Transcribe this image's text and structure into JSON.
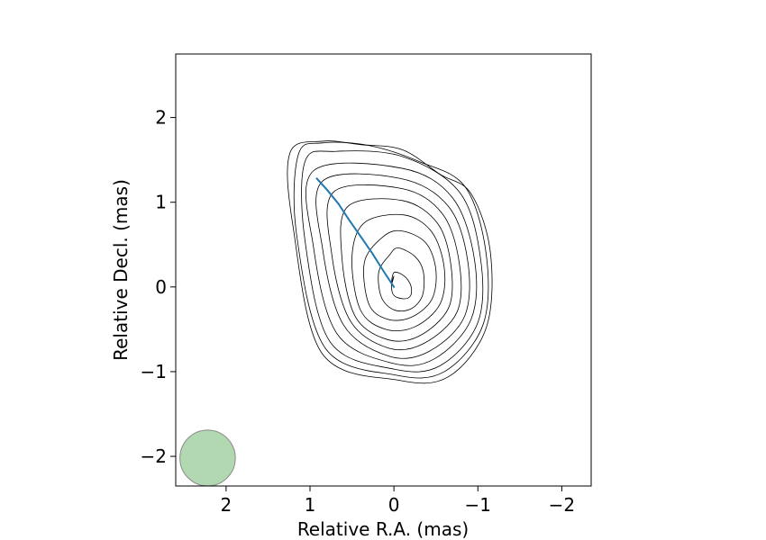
{
  "chart_data": {
    "type": "contour",
    "xlabel": "Relative R.A. (mas)",
    "ylabel": "Relative Decl. (mas)",
    "xlim": [
      2.6,
      -2.35
    ],
    "ylim": [
      -2.35,
      2.75
    ],
    "x_ticks": [
      2,
      1,
      0,
      -1,
      -2
    ],
    "x_tick_labels": [
      "2",
      "1",
      "0",
      "−1",
      "−2"
    ],
    "y_ticks": [
      -2,
      -1,
      0,
      1,
      2
    ],
    "y_tick_labels": [
      "−2",
      "−1",
      "0",
      "1",
      "2"
    ],
    "contours": {
      "color": "#000000",
      "levels": [
        {
          "ra": [
            0.0,
            0.03,
            0.0,
            -0.12,
            -0.2,
            -0.2,
            -0.12,
            0.0,
            0.03,
            0.0
          ],
          "dec": [
            0.13,
            0.02,
            -0.1,
            -0.14,
            -0.1,
            0.02,
            0.13,
            0.17,
            0.02,
            0.13
          ]
        },
        {
          "ra": [
            0.05,
            0.18,
            0.15,
            0.0,
            -0.2,
            -0.34,
            -0.35,
            -0.25,
            -0.05,
            0.05
          ],
          "dec": [
            0.38,
            0.18,
            -0.12,
            -0.27,
            -0.26,
            -0.1,
            0.18,
            0.36,
            0.46,
            0.38
          ]
        },
        {
          "ra": [
            0.12,
            0.35,
            0.3,
            0.08,
            -0.2,
            -0.45,
            -0.5,
            -0.38,
            -0.1,
            0.12
          ],
          "dec": [
            0.6,
            0.3,
            -0.2,
            -0.38,
            -0.36,
            -0.15,
            0.2,
            0.52,
            0.66,
            0.6
          ]
        },
        {
          "ra": [
            0.35,
            0.5,
            0.4,
            0.1,
            -0.25,
            -0.55,
            -0.6,
            -0.45,
            -0.12,
            0.35
          ],
          "dec": [
            0.76,
            0.35,
            -0.27,
            -0.5,
            -0.47,
            -0.2,
            0.22,
            0.65,
            0.85,
            0.76
          ]
        },
        {
          "ra": [
            0.55,
            0.62,
            0.46,
            0.08,
            -0.3,
            -0.65,
            -0.68,
            -0.52,
            -0.1,
            0.55
          ],
          "dec": [
            0.95,
            0.35,
            -0.35,
            -0.62,
            -0.58,
            -0.25,
            0.25,
            0.75,
            1.02,
            0.95
          ]
        },
        {
          "ra": [
            0.72,
            0.74,
            0.52,
            0.07,
            -0.35,
            -0.75,
            -0.78,
            -0.58,
            -0.1,
            0.72
          ],
          "dec": [
            1.12,
            0.38,
            -0.4,
            -0.72,
            -0.67,
            -0.3,
            0.27,
            0.86,
            1.16,
            1.12
          ]
        },
        {
          "ra": [
            0.85,
            0.85,
            0.6,
            0.05,
            -0.42,
            -0.84,
            -0.88,
            -0.65,
            -0.08,
            0.85
          ],
          "dec": [
            1.25,
            0.45,
            -0.45,
            -0.82,
            -0.76,
            -0.35,
            0.3,
            0.95,
            1.28,
            1.25
          ]
        },
        {
          "ra": [
            0.96,
            0.96,
            0.68,
            0.02,
            -0.48,
            -0.92,
            -0.96,
            -0.7,
            -0.1,
            0.96
          ],
          "dec": [
            1.37,
            0.48,
            -0.55,
            -0.9,
            -0.85,
            -0.38,
            0.32,
            1.05,
            1.4,
            1.37
          ]
        },
        {
          "ra": [
            1.06,
            1.06,
            0.76,
            0.0,
            -0.55,
            -1.0,
            -1.03,
            -0.78,
            -0.1,
            0.7,
            1.06
          ],
          "dec": [
            1.48,
            0.55,
            -0.65,
            -0.97,
            -0.93,
            -0.42,
            0.35,
            1.12,
            1.54,
            1.6,
            1.48
          ]
        },
        {
          "ra": [
            1.14,
            1.16,
            0.82,
            -0.02,
            -0.6,
            -1.06,
            -1.1,
            -0.85,
            -0.3,
            0.3,
            0.85,
            1.14
          ],
          "dec": [
            1.56,
            0.62,
            -0.72,
            -1.04,
            -1.0,
            -0.45,
            0.38,
            1.18,
            1.48,
            1.67,
            1.7,
            1.56
          ]
        },
        {
          "ra": [
            1.24,
            1.2,
            0.86,
            -0.05,
            -0.65,
            -1.1,
            -1.15,
            -0.92,
            -0.55,
            -0.1,
            0.4,
            0.85,
            1.24
          ],
          "dec": [
            1.58,
            0.7,
            -0.78,
            -1.1,
            -1.06,
            -0.48,
            0.4,
            1.1,
            1.33,
            1.62,
            1.68,
            1.72,
            1.58
          ]
        }
      ]
    },
    "jet_ridge": {
      "color": "#1f77b4",
      "ra": [
        0.0,
        0.12,
        0.26,
        0.4,
        0.54,
        0.66,
        0.8,
        0.92
      ],
      "dec": [
        0.0,
        0.18,
        0.4,
        0.6,
        0.8,
        0.98,
        1.15,
        1.28
      ]
    },
    "beam": {
      "center_ra": 2.22,
      "center_dec": -2.02,
      "radius": 0.33,
      "fill": "#b2d8b2",
      "stroke": "#8a8a8a"
    }
  }
}
